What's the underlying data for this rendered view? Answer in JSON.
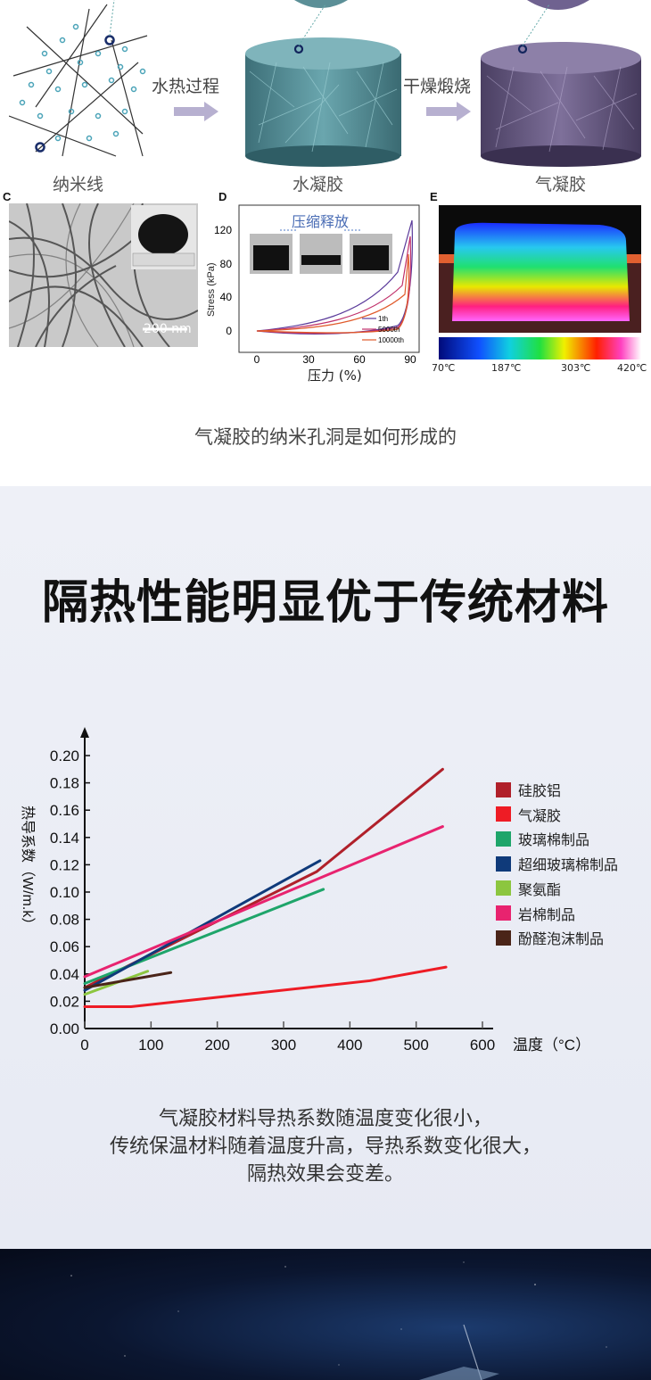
{
  "process": {
    "stage1": "纳米线",
    "stage2": "水凝胶",
    "stage3": "气凝胶",
    "arrow1": "水热过程",
    "arrow2": "干燥煅烧"
  },
  "panels": {
    "c_letter": "C",
    "d_letter": "D",
    "e_letter": "E",
    "c_scale": "200 nm",
    "d_inset_label": "压缩释放",
    "d_ylabel": "Stress (kPa)",
    "d_xlabel": "压力 (%)",
    "d_yticks": [
      "120",
      "80",
      "40",
      "0"
    ],
    "d_xticks": [
      "0",
      "30",
      "60",
      "90"
    ],
    "d_legend": [
      "1th",
      "5000th",
      "10000th"
    ],
    "e_ticks": [
      "70℃",
      "187℃",
      "303℃",
      "420℃"
    ],
    "colors": {
      "d_1th": "#5a3a9a",
      "d_5000th": "#c0306a",
      "d_10000th": "#e05a2a"
    }
  },
  "caption1": "气凝胶的纳米孔洞是如何形成的",
  "title": "隔热性能明显优于传统材料",
  "chart_data": {
    "type": "line",
    "xlabel": "温度（°C）",
    "ylabel": "热导系数（W/m.k）",
    "xlim": [
      0,
      600
    ],
    "ylim": [
      0,
      0.2
    ],
    "xticks": [
      "0",
      "100",
      "200",
      "300",
      "400",
      "500",
      "600"
    ],
    "yticks": [
      "0.00",
      "0.02",
      "0.04",
      "0.06",
      "0.08",
      "0.10",
      "0.12",
      "0.14",
      "0.16",
      "0.18",
      "0.20"
    ],
    "series": [
      {
        "name": "硅胶铝",
        "color": "#b0202a",
        "points": [
          [
            0,
            0.03
          ],
          [
            350,
            0.115
          ],
          [
            540,
            0.19
          ]
        ]
      },
      {
        "name": "气凝胶",
        "color": "#ee1c25",
        "points": [
          [
            0,
            0.016
          ],
          [
            70,
            0.016
          ],
          [
            430,
            0.035
          ],
          [
            545,
            0.045
          ]
        ]
      },
      {
        "name": "玻璃棉制品",
        "color": "#1ea56a",
        "points": [
          [
            0,
            0.033
          ],
          [
            360,
            0.102
          ]
        ]
      },
      {
        "name": "超细玻璃棉制品",
        "color": "#0f3a7a",
        "points": [
          [
            0,
            0.028
          ],
          [
            355,
            0.123
          ]
        ]
      },
      {
        "name": "聚氨酯",
        "color": "#8cc63f",
        "points": [
          [
            0,
            0.025
          ],
          [
            95,
            0.042
          ]
        ]
      },
      {
        "name": "岩棉制品",
        "color": "#e8236f",
        "points": [
          [
            0,
            0.038
          ],
          [
            540,
            0.148
          ]
        ]
      },
      {
        "name": "酚醛泡沫制品",
        "color": "#4a2418",
        "points": [
          [
            0,
            0.03
          ],
          [
            130,
            0.041
          ]
        ]
      }
    ],
    "legend": "right"
  },
  "note_lines": [
    "气凝胶材料导热系数随温度变化很小，",
    "传统保温材料随着温度升高，导热系数变化很大，",
    "隔热效果会变差。"
  ]
}
